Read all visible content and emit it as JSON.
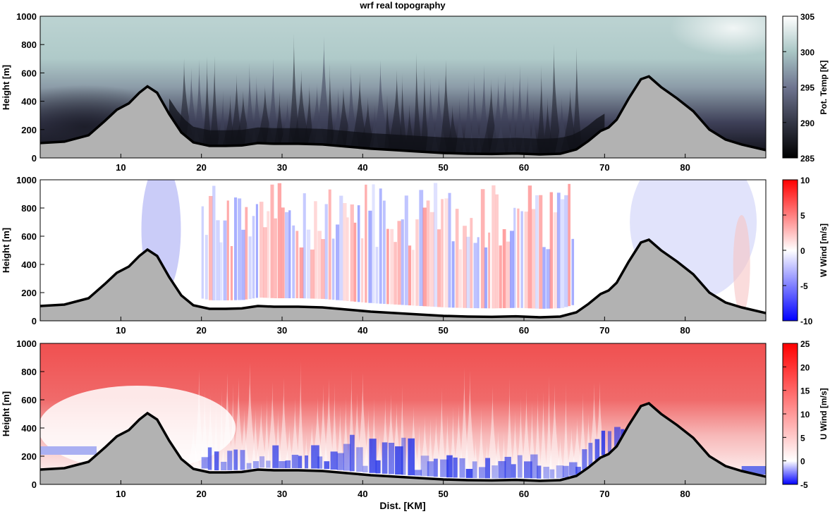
{
  "title": "wrf real topography",
  "colors": {
    "ground": "#b2b2b2",
    "terrain_line": "#000000",
    "temp_low": "#000000",
    "temp_mid": "#4a4c63",
    "temp_high": "#ffffff",
    "temp_bg": "#b3cdcc",
    "wind_neg": "#0000ff",
    "wind_pos": "#ff0000",
    "wind_zero": "#ffffff"
  },
  "chart_data": [
    {
      "type": "heatmap",
      "name": "potential-temperature",
      "title": "wrf real topography",
      "xlabel": "",
      "ylabel": "Height [m]",
      "xlim": [
        0,
        90
      ],
      "ylim": [
        0,
        1000
      ],
      "xticks": [
        "10",
        "20",
        "30",
        "40",
        "50",
        "60",
        "70",
        "80"
      ],
      "yticks": [
        "0",
        "200",
        "400",
        "600",
        "800",
        "1000"
      ],
      "colorbar": {
        "label": "Pot. Temp [K]",
        "range": [
          285,
          305
        ],
        "ticks": [
          "285",
          "290",
          "295",
          "300",
          "305"
        ]
      }
    },
    {
      "type": "heatmap",
      "name": "vertical-wind",
      "xlabel": "",
      "ylabel": "Height [m]",
      "xlim": [
        0,
        90
      ],
      "ylim": [
        0,
        1000
      ],
      "xticks": [
        "10",
        "20",
        "30",
        "40",
        "50",
        "60",
        "70",
        "80"
      ],
      "yticks": [
        "0",
        "200",
        "400",
        "600",
        "800",
        "1000"
      ],
      "colorbar": {
        "label": "W Wind [m/s]",
        "range": [
          -10,
          10
        ],
        "ticks": [
          "-10",
          "-5",
          "0",
          "5",
          "10"
        ]
      }
    },
    {
      "type": "heatmap",
      "name": "horizontal-wind",
      "xlabel": "Dist. [KM]",
      "ylabel": "Height [m]",
      "xlim": [
        0,
        90
      ],
      "ylim": [
        0,
        1000
      ],
      "xticks": [
        "10",
        "20",
        "30",
        "40",
        "50",
        "60",
        "70",
        "80"
      ],
      "yticks": [
        "0",
        "200",
        "400",
        "600",
        "800",
        "1000"
      ],
      "colorbar": {
        "label": "U Wind [m/s]",
        "range": [
          -5,
          25
        ],
        "ticks": [
          "-5",
          "0",
          "5",
          "10",
          "15",
          "20",
          "25"
        ]
      }
    }
  ],
  "terrain": {
    "x": [
      0,
      3,
      6,
      8,
      9.5,
      11,
      12.3,
      13.3,
      14.5,
      16,
      17.5,
      19,
      21,
      23,
      25,
      27,
      29,
      32,
      35,
      38,
      41,
      44,
      47,
      50,
      53,
      56,
      59,
      62,
      64.5,
      66.5,
      68,
      69.5,
      70.5,
      71.5,
      73,
      74.5,
      75.5,
      77,
      79,
      81,
      83,
      85,
      87,
      90
    ],
    "height": [
      105,
      115,
      160,
      260,
      340,
      385,
      460,
      505,
      460,
      310,
      180,
      110,
      85,
      85,
      88,
      105,
      100,
      100,
      95,
      80,
      65,
      55,
      45,
      35,
      30,
      28,
      32,
      25,
      30,
      60,
      120,
      190,
      215,
      270,
      420,
      555,
      575,
      500,
      420,
      330,
      200,
      130,
      95,
      55
    ]
  }
}
